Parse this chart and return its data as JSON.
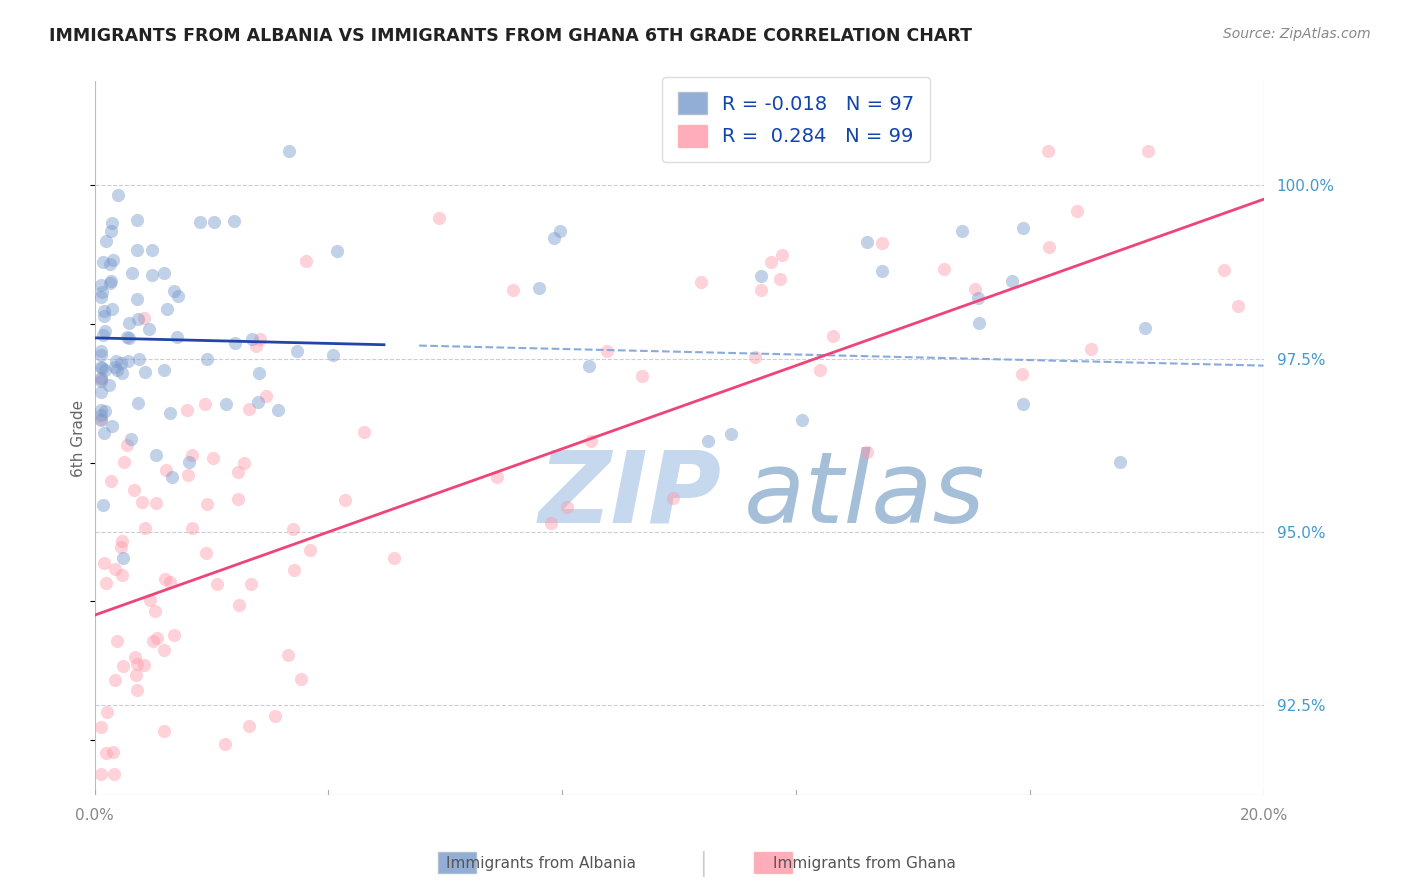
{
  "title": "IMMIGRANTS FROM ALBANIA VS IMMIGRANTS FROM GHANA 6TH GRADE CORRELATION CHART",
  "source": "Source: ZipAtlas.com",
  "ylabel": "6th Grade",
  "legend_albania": "Immigrants from Albania",
  "legend_ghana": "Immigrants from Ghana",
  "R_albania": -0.018,
  "N_albania": 97,
  "R_ghana": 0.284,
  "N_ghana": 99,
  "xlim": [
    0.0,
    0.2
  ],
  "ylim": [
    91.2,
    101.5
  ],
  "yticks": [
    92.5,
    95.0,
    97.5,
    100.0
  ],
  "xtick_positions": [
    0.0,
    0.04,
    0.08,
    0.12,
    0.16,
    0.2
  ],
  "xtick_labels": [
    "0.0%",
    "",
    "",
    "",
    "",
    "20.0%"
  ],
  "ytick_labels": [
    "92.5%",
    "95.0%",
    "97.5%",
    "100.0%"
  ],
  "color_albania": "#7799CC",
  "color_ghana": "#FF99AA",
  "line_albania_solid": "#2244AA",
  "line_albania_dashed": "#88AADD",
  "line_ghana": "#EE4477",
  "background": "#FFFFFF",
  "grid_color": "#CCCCDD",
  "scatter_alpha": 0.45,
  "scatter_size": 90
}
